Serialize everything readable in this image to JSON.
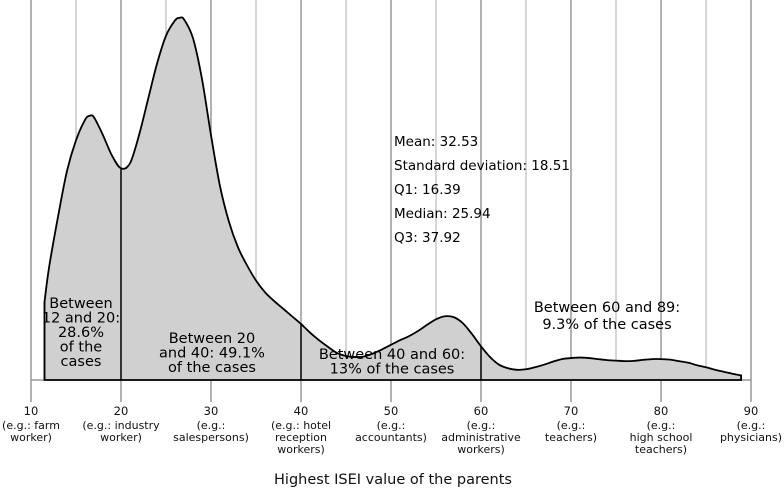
{
  "chart_data": {
    "type": "area",
    "title": "",
    "xlabel": "Highest ISEI value of the parents",
    "ylabel": "",
    "xlim": [
      10,
      90
    ],
    "x_ticks": [
      {
        "value": 10,
        "label": "10",
        "example": "(e.g.: farm worker)"
      },
      {
        "value": 20,
        "label": "20",
        "example": "(e.g.: industry worker)"
      },
      {
        "value": 30,
        "label": "30",
        "example": "(e.g.: salespersons)"
      },
      {
        "value": 40,
        "label": "40",
        "example": "(e.g.: hotel reception workers)"
      },
      {
        "value": 50,
        "label": "50",
        "example": "(e.g.: accountants)"
      },
      {
        "value": 60,
        "label": "60",
        "example": "(e.g.: administrative workers)"
      },
      {
        "value": 70,
        "label": "70",
        "example": "(e.g.: teachers)"
      },
      {
        "value": 80,
        "label": "80",
        "example": "(e.g.: high school teachers)"
      },
      {
        "value": 90,
        "label": "90",
        "example": "(e.g.: physicians)"
      }
    ],
    "minor_gridlines": [
      15,
      25,
      35,
      45,
      55,
      65,
      75,
      85
    ],
    "density_curve": {
      "x": [
        11.5,
        12,
        13,
        14,
        15,
        16,
        16.5,
        17,
        18,
        19,
        20,
        21,
        22,
        23,
        24,
        25,
        26,
        26.5,
        27,
        28,
        29,
        30,
        31,
        32,
        33,
        34,
        35,
        36,
        37,
        38,
        39,
        40,
        41,
        42,
        43,
        44,
        45,
        46,
        47,
        48,
        49,
        50,
        51,
        52,
        53,
        54,
        55,
        56,
        57,
        58,
        59,
        60,
        61,
        62,
        63,
        64,
        65,
        66,
        67,
        68,
        69,
        70,
        71,
        72,
        73,
        74,
        75,
        76,
        77,
        78,
        79,
        80,
        81,
        82,
        83,
        84,
        85,
        86,
        87,
        88,
        88.9
      ],
      "y": [
        15.3,
        22,
        32,
        41,
        47,
        51,
        51.8,
        51.5,
        48,
        44,
        41.5,
        42.5,
        48,
        55,
        62,
        67.5,
        70.5,
        71,
        70.7,
        67,
        59,
        48,
        38,
        31,
        26,
        22.5,
        19.5,
        17.2,
        15.5,
        14,
        12.5,
        11,
        9.3,
        7.8,
        6.5,
        5.3,
        4.7,
        4.5,
        4.6,
        5.2,
        6,
        6.9,
        7.8,
        8.6,
        9.6,
        10.8,
        11.9,
        12.5,
        12.3,
        11.1,
        9,
        6.6,
        4.5,
        3,
        2.3,
        2.0,
        2.1,
        2.5,
        3.0,
        3.6,
        4.1,
        4.3,
        4.4,
        4.3,
        4.1,
        3.9,
        3.8,
        3.7,
        3.75,
        3.95,
        4.1,
        4.1,
        4.0,
        3.7,
        3.4,
        2.9,
        2.5,
        2.0,
        1.6,
        1.2,
        0.9
      ]
    },
    "dividers": [
      11.5,
      20,
      40,
      60,
      88.9
    ],
    "regions": [
      {
        "lines": [
          "Between",
          "12 and 20:",
          "28.6%",
          "of the",
          "cases"
        ],
        "range": [
          12,
          20
        ],
        "percent": 28.6
      },
      {
        "lines": [
          "Between 20",
          "and 40: 49.1%",
          "of the cases"
        ],
        "range": [
          20,
          40
        ],
        "percent": 49.1
      },
      {
        "lines": [
          "Between 40 and 60:",
          "13% of the cases"
        ],
        "range": [
          40,
          60
        ],
        "percent": 13
      },
      {
        "lines": [
          "Between 60 and 89:",
          "9.3% of the cases"
        ],
        "range": [
          60,
          89
        ],
        "percent": 9.3
      }
    ],
    "statistics": [
      {
        "label": "Mean",
        "value": 32.53,
        "text": "Mean: 32.53"
      },
      {
        "label": "Standard deviation",
        "value": 18.51,
        "text": "Standard deviation: 18.51"
      },
      {
        "label": "Q1",
        "value": 16.39,
        "text": "Q1: 16.39"
      },
      {
        "label": "Median",
        "value": 25.94,
        "text": "Median: 25.94"
      },
      {
        "label": "Q3",
        "value": 37.92,
        "text": "Q3: 37.92"
      }
    ],
    "grid": true,
    "legend": "none"
  }
}
